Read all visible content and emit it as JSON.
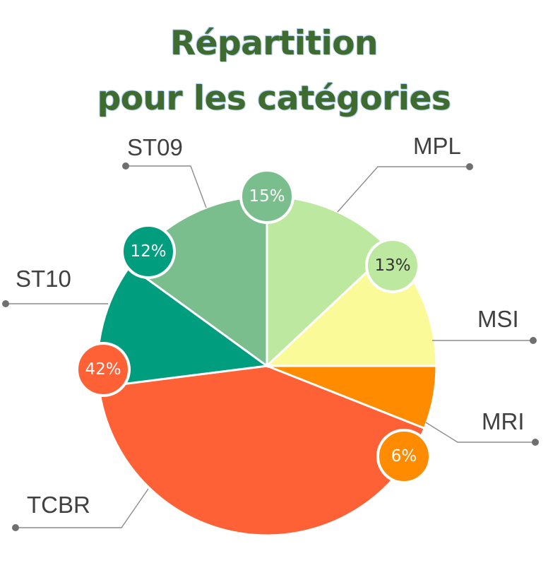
{
  "chart_data": {
    "type": "pie",
    "title_line1": "Répartition",
    "title_line2": "pour les catégories",
    "slices": [
      {
        "label": "MPL",
        "value": 13,
        "display": "13%",
        "color": "#BDE8A0",
        "text_color": "#333333"
      },
      {
        "label": "MSI",
        "value": 12,
        "display": "12%",
        "color": "#FAFB98",
        "text_color": "#333333"
      },
      {
        "label": "MRI",
        "value": 6,
        "display": "6%",
        "color": "#FF8C00",
        "text_color": "#ffffff"
      },
      {
        "label": "TCBR",
        "value": 42,
        "display": "42%",
        "color": "#FF6137",
        "text_color": "#ffffff"
      },
      {
        "label": "ST10",
        "value": 12,
        "display": "12%",
        "color": "#009E7F",
        "text_color": "#ffffff"
      },
      {
        "label": "ST09",
        "value": 15,
        "display": "15%",
        "color": "#7ABE8D",
        "text_color": "#ffffff"
      }
    ]
  }
}
